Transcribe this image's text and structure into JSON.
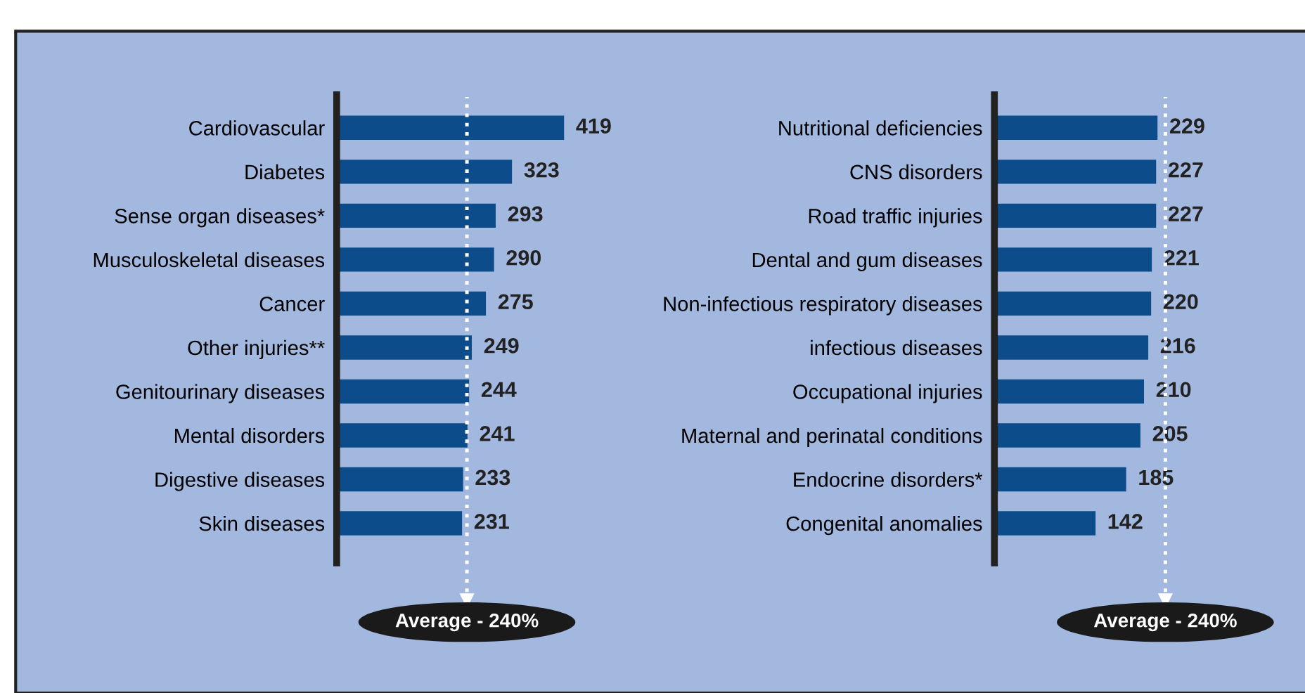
{
  "chart_data": [
    {
      "type": "bar",
      "orientation": "horizontal",
      "categories": [
        "Cardiovascular",
        "Diabetes",
        "Sense organ diseases*",
        "Musculoskeletal diseases",
        "Cancer",
        "Other injuries**",
        "Genitourinary diseases",
        "Mental disorders",
        "Digestive diseases",
        "Skin diseases"
      ],
      "values": [
        419,
        323,
        293,
        290,
        275,
        249,
        244,
        241,
        233,
        231
      ],
      "color": "#0d4c8a",
      "data_labels": true,
      "tick_labels": "y",
      "grid": false,
      "ref_lines": [
        {
          "axis": "x",
          "value": 240,
          "label": "Average - 240%",
          "color": "#ffffff",
          "line_style": "dotted"
        }
      ]
    },
    {
      "type": "bar",
      "orientation": "horizontal",
      "categories": [
        "Nutritional deficiencies",
        "CNS disorders",
        "Road traffic injuries",
        "Dental and gum diseases",
        "Non-infectious respiratory diseases",
        "infectious diseases",
        "Occupational injuries",
        "Maternal and perinatal conditions",
        "Endocrine disorders*",
        "Congenital anomalies"
      ],
      "values": [
        229,
        227,
        227,
        221,
        220,
        216,
        210,
        205,
        185,
        142
      ],
      "color": "#0d4c8a",
      "data_labels": true,
      "tick_labels": "y",
      "grid": false,
      "ref_lines": [
        {
          "axis": "x",
          "value": 240,
          "label": "Average - 240%",
          "color": "#ffffff",
          "line_style": "dotted"
        }
      ]
    }
  ]
}
